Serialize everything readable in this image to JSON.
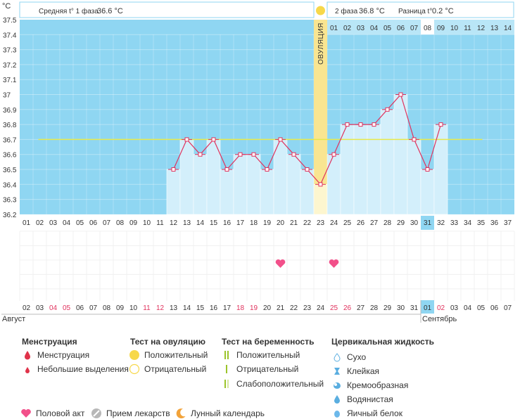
{
  "chart_data": {
    "type": "line",
    "unit_label": "°C",
    "y_ticks": [
      "37.5",
      "37.4",
      "37.3",
      "37.2",
      "37.1",
      "37",
      "36.9",
      "36.8",
      "36.7",
      "36.6",
      "36.5",
      "36.4",
      "36.3",
      "36.2"
    ],
    "ylim": [
      36.2,
      37.5
    ],
    "cycle_days": [
      "01",
      "02",
      "03",
      "04",
      "05",
      "06",
      "07",
      "08",
      "09",
      "10",
      "11",
      "12",
      "13",
      "14",
      "15",
      "16",
      "17",
      "18",
      "19",
      "20",
      "21",
      "22",
      "23",
      "24",
      "25",
      "26",
      "27",
      "28",
      "29",
      "30",
      "31",
      "32",
      "33",
      "34",
      "35",
      "36",
      "37"
    ],
    "highlight_cycle_day": "31",
    "ovulation_day_index": 22,
    "ovulation_label": "ОВУЛЯЦИЯ",
    "phase2_day_labels": [
      "01",
      "02",
      "03",
      "04",
      "05",
      "06",
      "07",
      "08",
      "09",
      "10",
      "11",
      "12",
      "13",
      "14"
    ],
    "phase2_highlight": "08",
    "temperatures": [
      null,
      null,
      null,
      null,
      null,
      null,
      null,
      null,
      null,
      null,
      null,
      36.5,
      36.7,
      36.6,
      36.7,
      36.5,
      36.6,
      36.6,
      36.5,
      36.7,
      36.6,
      36.5,
      36.4,
      36.6,
      36.8,
      36.8,
      36.8,
      36.9,
      37.0,
      36.7,
      36.5,
      36.8,
      null,
      null,
      null,
      null,
      null
    ],
    "coverline": 36.7,
    "header": {
      "phase1_label": "Средняя t° 1 фаза",
      "phase1_value": "36.6 °C",
      "phase2_label": "2 фаза",
      "phase2_value": "36.8 °C",
      "diff_label": "Разница t°",
      "diff_value": "0.2 °C"
    },
    "dates": [
      {
        "d": "02",
        "red": false
      },
      {
        "d": "03",
        "red": false
      },
      {
        "d": "04",
        "red": true
      },
      {
        "d": "05",
        "red": true
      },
      {
        "d": "06",
        "red": false
      },
      {
        "d": "07",
        "red": false
      },
      {
        "d": "08",
        "red": false
      },
      {
        "d": "09",
        "red": false
      },
      {
        "d": "10",
        "red": false
      },
      {
        "d": "11",
        "red": true
      },
      {
        "d": "12",
        "red": true
      },
      {
        "d": "13",
        "red": false
      },
      {
        "d": "14",
        "red": false
      },
      {
        "d": "15",
        "red": false
      },
      {
        "d": "16",
        "red": false
      },
      {
        "d": "17",
        "red": false
      },
      {
        "d": "18",
        "red": true
      },
      {
        "d": "19",
        "red": true
      },
      {
        "d": "20",
        "red": false
      },
      {
        "d": "21",
        "red": false
      },
      {
        "d": "22",
        "red": false
      },
      {
        "d": "23",
        "red": false
      },
      {
        "d": "24",
        "red": false
      },
      {
        "d": "25",
        "red": true
      },
      {
        "d": "26",
        "red": true
      },
      {
        "d": "27",
        "red": false
      },
      {
        "d": "28",
        "red": false
      },
      {
        "d": "29",
        "red": false
      },
      {
        "d": "30",
        "red": false
      },
      {
        "d": "31",
        "red": false
      },
      {
        "d": "01",
        "red": false
      },
      {
        "d": "02",
        "red": true
      },
      {
        "d": "03",
        "red": false
      },
      {
        "d": "04",
        "red": false
      },
      {
        "d": "05",
        "red": false
      },
      {
        "d": "06",
        "red": false
      },
      {
        "d": "07",
        "red": false
      }
    ],
    "highlight_date_index": 30,
    "months": [
      "Август",
      "Сентябрь"
    ],
    "intercourse_day_indices": [
      19,
      23
    ],
    "colors": {
      "sky": "#8fd6f2",
      "bar": "#d3effb",
      "line": "#e0335e",
      "ovulation": "#f9e591",
      "coverline": "#e8e94a",
      "heart": "#f2508a"
    }
  },
  "legend": {
    "menstruation": {
      "title": "Менструация",
      "items": [
        {
          "label": "Менструация",
          "icon": "drop-large-icon"
        },
        {
          "label": "Небольшие выделения",
          "icon": "drop-small-icon"
        }
      ]
    },
    "ovulation_test": {
      "title": "Тест на овуляцию",
      "items": [
        {
          "label": "Положительный",
          "icon": "circle-filled-icon"
        },
        {
          "label": "Отрицательный",
          "icon": "circle-outline-icon"
        }
      ]
    },
    "pregnancy_test": {
      "title": "Тест на беременность",
      "items": [
        {
          "label": "Положительный",
          "icon": "double-bar-icon"
        },
        {
          "label": "Отрицательный",
          "icon": "single-bar-icon"
        },
        {
          "label": "Слабоположительный",
          "icon": "faint-bar-icon"
        }
      ]
    },
    "cervical": {
      "title": "Цервикальная жидкость",
      "items": [
        {
          "label": "Сухо",
          "icon": "dry-icon"
        },
        {
          "label": "Клейкая",
          "icon": "sticky-icon"
        },
        {
          "label": "Кремообразная",
          "icon": "creamy-icon"
        },
        {
          "label": "Водянистая",
          "icon": "watery-icon"
        },
        {
          "label": "Яичный белок",
          "icon": "egg-white-icon"
        }
      ]
    },
    "bottom": [
      {
        "label": "Половой акт",
        "icon": "heart-icon"
      },
      {
        "label": "Прием лекарств",
        "icon": "pill-icon"
      },
      {
        "label": "Лунный календарь",
        "icon": "moon-icon"
      }
    ]
  }
}
